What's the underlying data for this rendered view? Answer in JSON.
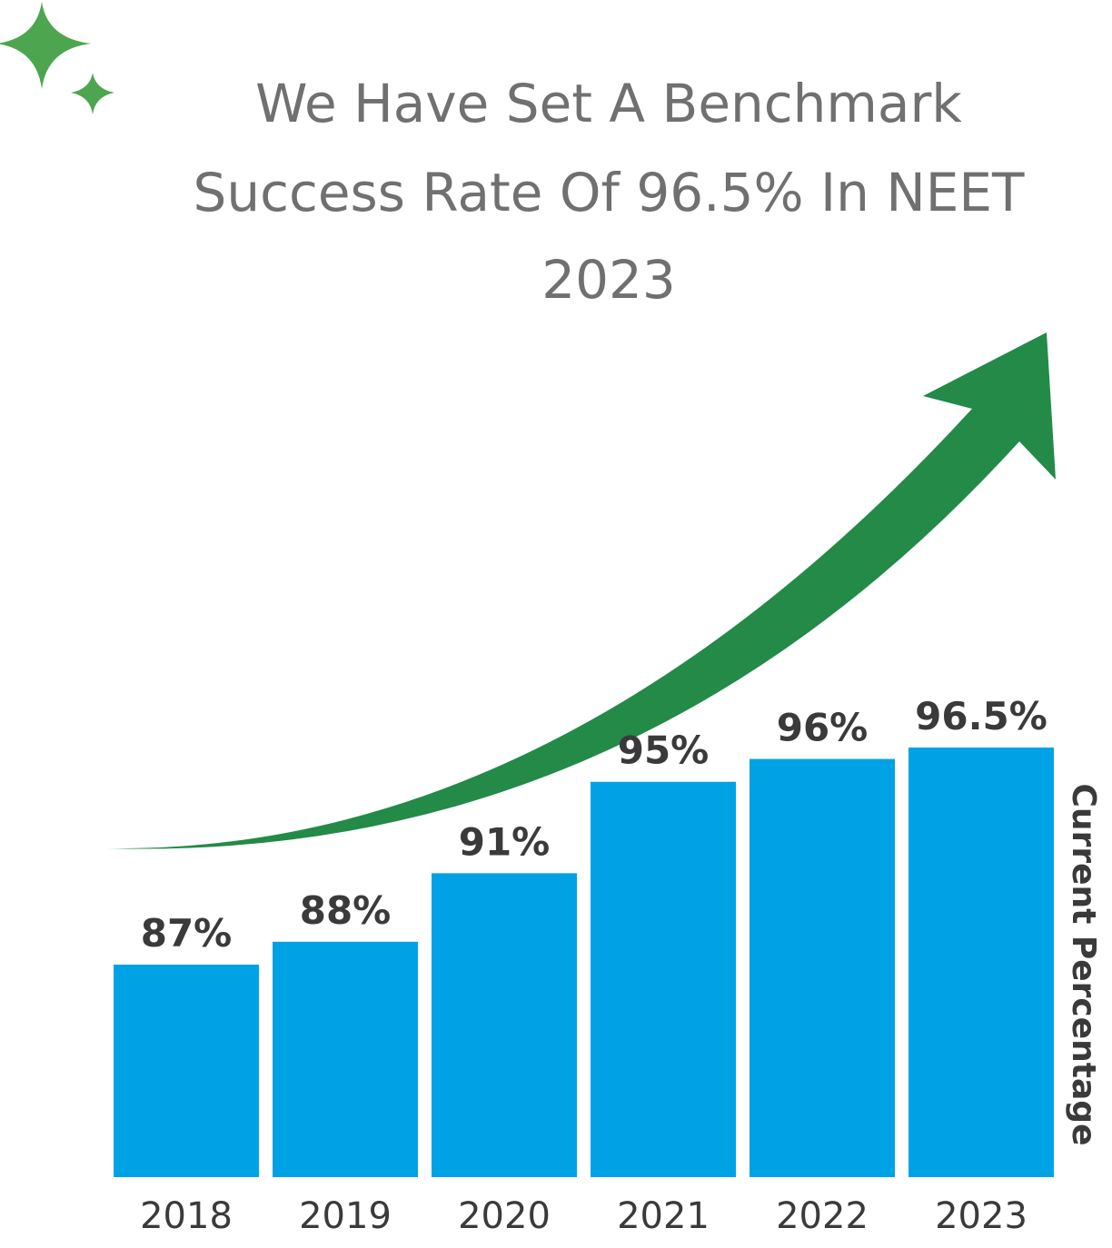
{
  "chart_data": {
    "type": "bar",
    "title_lines": [
      "We Have Set A Benchmark",
      "Success Rate Of 96.5% In NEET",
      "2023"
    ],
    "categories": [
      "2018",
      "2019",
      "2020",
      "2021",
      "2022",
      "2023"
    ],
    "values": [
      87,
      88,
      91,
      95,
      96,
      96.5
    ],
    "value_labels": [
      "87%",
      "88%",
      "91%",
      "95%",
      "96%",
      "96.5%"
    ],
    "ylabel": "Current Percentage",
    "grid": false,
    "legend": "none",
    "colors": {
      "bar": "#00a2e6",
      "arrow": "#238a48",
      "sparkle": "#4da64f",
      "title": "#707070",
      "label": "#3a3a3a"
    },
    "decorations": {
      "icons": [
        "sparkle-icon",
        "growth-arrow-icon"
      ]
    }
  }
}
